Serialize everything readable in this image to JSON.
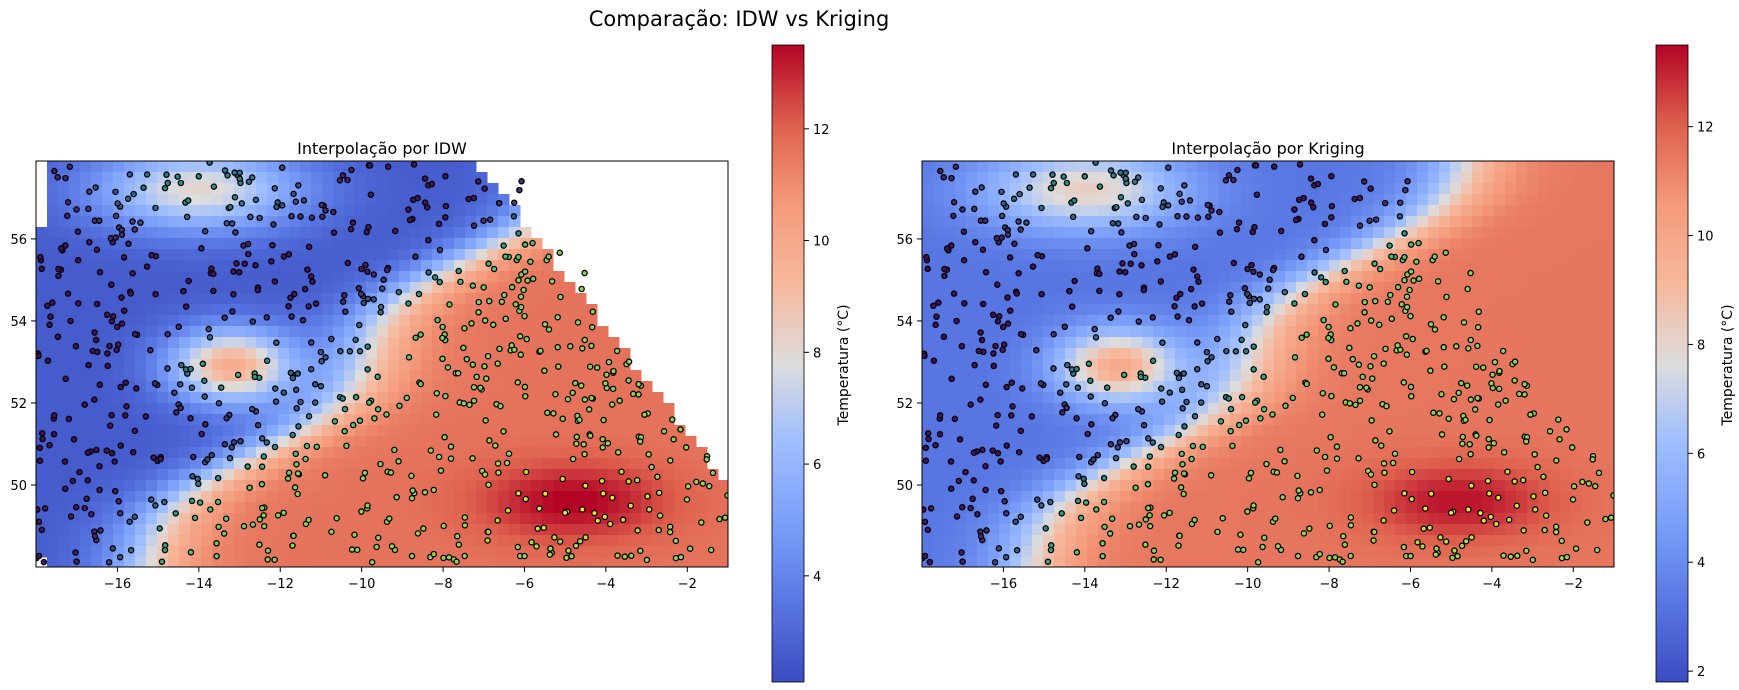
{
  "figure": {
    "title": "Comparação: IDW vs Kriging"
  },
  "chart_data": [
    {
      "type": "heatmap",
      "title": "Interpolação por IDW",
      "method": "idw",
      "xlabel": "",
      "ylabel": "",
      "xlim": [
        -18,
        -1
      ],
      "ylim": [
        48.0,
        57.9
      ],
      "x_ticks": [
        -16,
        -14,
        -12,
        -10,
        -8,
        -6,
        -4,
        -2
      ],
      "x_tick_labels": [
        "−16",
        "−14",
        "−12",
        "−10",
        "−8",
        "−6",
        "−4",
        "−2"
      ],
      "y_ticks": [
        50,
        52,
        54,
        56
      ],
      "y_tick_labels": [
        "50",
        "52",
        "54",
        "56"
      ],
      "colorbar": {
        "label": "Temperatura (°C)",
        "range": [
          2.1,
          13.5
        ],
        "ticks": [
          4,
          6,
          8,
          10,
          12
        ],
        "tick_labels": [
          "4",
          "6",
          "8",
          "10",
          "12"
        ],
        "colormap": "coolwarm"
      },
      "stations": "scatter markers colored by temperature (viridis), black edges"
    },
    {
      "type": "heatmap",
      "title": "Interpolação por Kriging",
      "method": "kriging",
      "xlabel": "",
      "ylabel": "",
      "xlim": [
        -18,
        -1
      ],
      "ylim": [
        48.0,
        57.9
      ],
      "x_ticks": [
        -16,
        -14,
        -12,
        -10,
        -8,
        -6,
        -4,
        -2
      ],
      "x_tick_labels": [
        "−16",
        "−14",
        "−12",
        "−10",
        "−8",
        "−6",
        "−4",
        "−2"
      ],
      "y_ticks": [
        50,
        52,
        54,
        56
      ],
      "y_tick_labels": [
        "50",
        "52",
        "54",
        "56"
      ],
      "colorbar": {
        "label": "Temperatura (°C)",
        "range": [
          1.8,
          13.5
        ],
        "ticks": [
          2,
          4,
          6,
          8,
          10,
          12
        ],
        "tick_labels": [
          "2",
          "4",
          "6",
          "8",
          "10",
          "12"
        ],
        "colormap": "coolwarm"
      },
      "stations": "scatter markers colored by temperature (viridis), black edges"
    }
  ],
  "colors": {
    "cold": "#3b4cc0",
    "neutral": "#dddcdc",
    "warm": "#b40426"
  }
}
